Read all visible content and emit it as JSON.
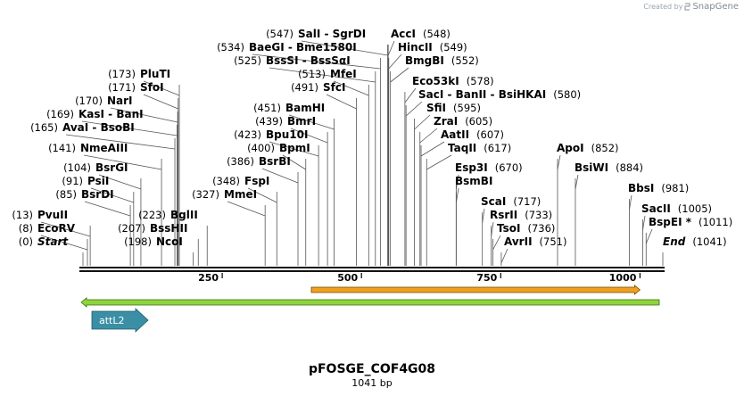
{
  "brand": {
    "created_by": "Created by",
    "product": "SnapGene"
  },
  "plasmid": {
    "name": "pFOSGE_COF4G08",
    "length_label": "1041 bp",
    "length": 1041
  },
  "ruler": {
    "ticks": [
      250,
      500,
      750,
      1000
    ]
  },
  "sites": [
    {
      "name": "PvuII",
      "pos": 13,
      "pos_text": "(13)"
    },
    {
      "name": "EcoRV",
      "pos": 8,
      "pos_text": "(8)"
    },
    {
      "name": "Start",
      "pos": 0,
      "pos_text": "(0)",
      "italic": true
    },
    {
      "name": "BsrDI",
      "pos": 85,
      "pos_text": "(85)"
    },
    {
      "name": "PsiI",
      "pos": 91,
      "pos_text": "(91)"
    },
    {
      "name": "BsrGI",
      "pos": 104,
      "pos_text": "(104)"
    },
    {
      "name": "NmeAIII",
      "pos": 141,
      "pos_text": "(141)"
    },
    {
      "name": "AvaI - BsoBI",
      "pos": 165,
      "pos_text": "(165)"
    },
    {
      "name": "KasI - BanI",
      "pos": 169,
      "pos_text": "(169)"
    },
    {
      "name": "NarI",
      "pos": 170,
      "pos_text": "(170)"
    },
    {
      "name": "SfoI",
      "pos": 171,
      "pos_text": "(171)"
    },
    {
      "name": "PluTI",
      "pos": 173,
      "pos_text": "(173)"
    },
    {
      "name": "BglII",
      "pos": 223,
      "pos_text": "(223)",
      "lead": true
    },
    {
      "name": "BssHII",
      "pos": 207,
      "pos_text": "(207)",
      "lead": true
    },
    {
      "name": "NcoI",
      "pos": 198,
      "pos_text": "(198)",
      "lead": true
    },
    {
      "name": "MmeI",
      "pos": 327,
      "pos_text": "(327)"
    },
    {
      "name": "FspI",
      "pos": 348,
      "pos_text": "(348)"
    },
    {
      "name": "BsrBI",
      "pos": 386,
      "pos_text": "(386)"
    },
    {
      "name": "BpmI",
      "pos": 400,
      "pos_text": "(400)"
    },
    {
      "name": "Bpu10I",
      "pos": 423,
      "pos_text": "(423)"
    },
    {
      "name": "BmrI",
      "pos": 439,
      "pos_text": "(439)"
    },
    {
      "name": "BamHI",
      "pos": 451,
      "pos_text": "(451)"
    },
    {
      "name": "SfcI",
      "pos": 491,
      "pos_text": "(491)"
    },
    {
      "name": "MfeI",
      "pos": 513,
      "pos_text": "(513)"
    },
    {
      "name": "BssSI - BssSαI",
      "pos": 525,
      "pos_text": "(525)"
    },
    {
      "name": "BaeGI - Bme1580I",
      "pos": 534,
      "pos_text": "(534)"
    },
    {
      "name": "SalI - SgrDI",
      "pos": 547,
      "pos_text": "(547)"
    },
    {
      "name": "AccI",
      "pos": 548,
      "pos_text": "(548)"
    },
    {
      "name": "HincII",
      "pos": 549,
      "pos_text": "(549)"
    },
    {
      "name": "BmgBI",
      "pos": 552,
      "pos_text": "(552)"
    },
    {
      "name": "Eco53kI",
      "pos": 578,
      "pos_text": "(578)"
    },
    {
      "name": "SacI - BanII - BsiHKAI",
      "pos": 580,
      "pos_text": "(580)"
    },
    {
      "name": "SfiI",
      "pos": 595,
      "pos_text": "(595)"
    },
    {
      "name": "ZraI",
      "pos": 605,
      "pos_text": "(605)"
    },
    {
      "name": "AatII",
      "pos": 607,
      "pos_text": "(607)"
    },
    {
      "name": "TaqII",
      "pos": 617,
      "pos_text": "(617)"
    },
    {
      "name": "Esp3I",
      "pos": 670,
      "pos_text": "(670)"
    },
    {
      "name": "BsmBI",
      "pos": 670,
      "pos_text": ""
    },
    {
      "name": "ScaI",
      "pos": 717,
      "pos_text": "(717)"
    },
    {
      "name": "RsrII",
      "pos": 733,
      "pos_text": "(733)"
    },
    {
      "name": "TsoI",
      "pos": 736,
      "pos_text": "(736)"
    },
    {
      "name": "AvrII",
      "pos": 751,
      "pos_text": "(751)"
    },
    {
      "name": "ApoI",
      "pos": 852,
      "pos_text": "(852)"
    },
    {
      "name": "BsiWI",
      "pos": 884,
      "pos_text": "(884)"
    },
    {
      "name": "BbsI",
      "pos": 981,
      "pos_text": "(981)"
    },
    {
      "name": "SacII",
      "pos": 1005,
      "pos_text": "(1005)"
    },
    {
      "name": "BspEI *",
      "pos": 1011,
      "pos_text": "(1011)"
    },
    {
      "name": "End",
      "pos": 1041,
      "pos_text": "(1041)",
      "italic": true
    }
  ],
  "features": [
    {
      "name": "",
      "start": 410,
      "end": 1000,
      "direction": "forward",
      "color": "#f0a020"
    },
    {
      "name": "",
      "start": 0,
      "end": 1041,
      "direction": "both",
      "color": "#8ed43c"
    },
    {
      "name": "attL2",
      "start": 20,
      "end": 120,
      "direction": "forward",
      "color": "#3a8fa5"
    }
  ],
  "colors": {
    "backbone": "#111111",
    "leader": "#555555",
    "text": "#000000"
  }
}
